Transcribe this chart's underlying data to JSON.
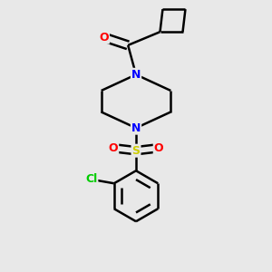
{
  "background_color": "#e8e8e8",
  "bond_color": "#000000",
  "atom_colors": {
    "O": "#ff0000",
    "N": "#0000ff",
    "S": "#cccc00",
    "Cl": "#00cc00",
    "C": "#000000"
  },
  "line_width": 1.8,
  "font_size": 9,
  "figsize": [
    3.0,
    3.0
  ],
  "dpi": 100
}
